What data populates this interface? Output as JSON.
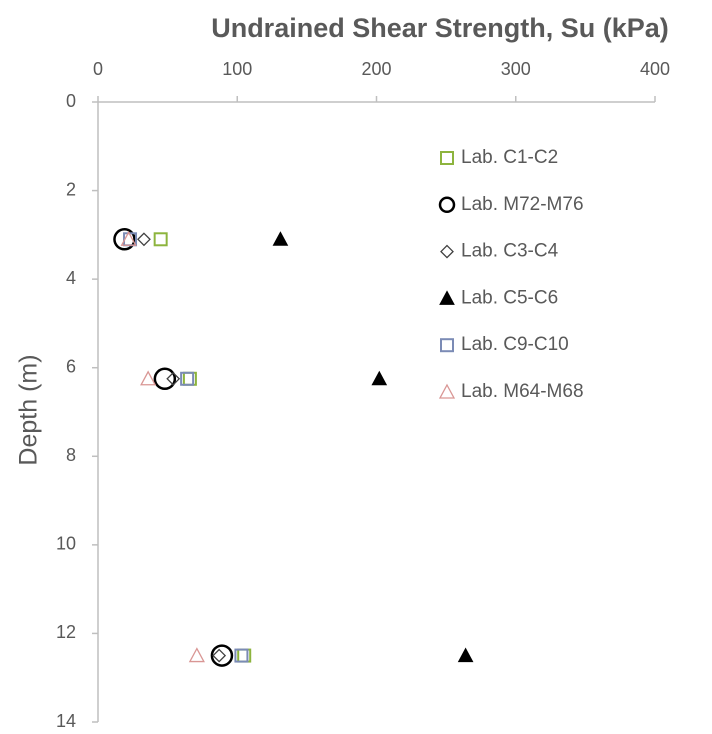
{
  "chart_data": {
    "type": "scatter",
    "title": "Undrained Shear Strength, Su (kPa)",
    "y_label": "Depth (m)",
    "xlim": [
      0,
      400
    ],
    "xticks": [
      0,
      100,
      200,
      300,
      400
    ],
    "ylim": [
      0,
      14
    ],
    "yticks": [
      0,
      2,
      4,
      6,
      8,
      10,
      12,
      14
    ],
    "y_inverted": true,
    "x_axis_position": "top",
    "legend": "upper right",
    "series": [
      {
        "name": "Lab. C1-C2",
        "color": "#8db43e",
        "marker": "square",
        "x": [
          45,
          66,
          105
        ],
        "values": [
          3.1,
          6.25,
          12.5
        ]
      },
      {
        "name": "Lab. M72-M76",
        "color": "#000000",
        "marker": "circle",
        "x": [
          19,
          48,
          89
        ],
        "values": [
          3.1,
          6.25,
          12.5
        ]
      },
      {
        "name": "Lab. C3-C4",
        "color": "#404040",
        "marker": "diamond",
        "x": [
          33,
          54,
          87
        ],
        "values": [
          3.1,
          6.25,
          12.5
        ]
      },
      {
        "name": "Lab. C5-C6",
        "color": "#000000",
        "marker": "triangle-filled",
        "x": [
          131,
          202,
          264
        ],
        "values": [
          3.1,
          6.25,
          12.5
        ]
      },
      {
        "name": "Lab. C9-C10",
        "color": "#7b8bb5",
        "marker": "square",
        "x": [
          23,
          64,
          103
        ],
        "values": [
          3.1,
          6.25,
          12.5
        ]
      },
      {
        "name": "Lab. M64-M68",
        "color": "#d99694",
        "marker": "triangle",
        "x": [
          22,
          36,
          71
        ],
        "values": [
          3.1,
          6.25,
          12.5
        ]
      }
    ]
  }
}
